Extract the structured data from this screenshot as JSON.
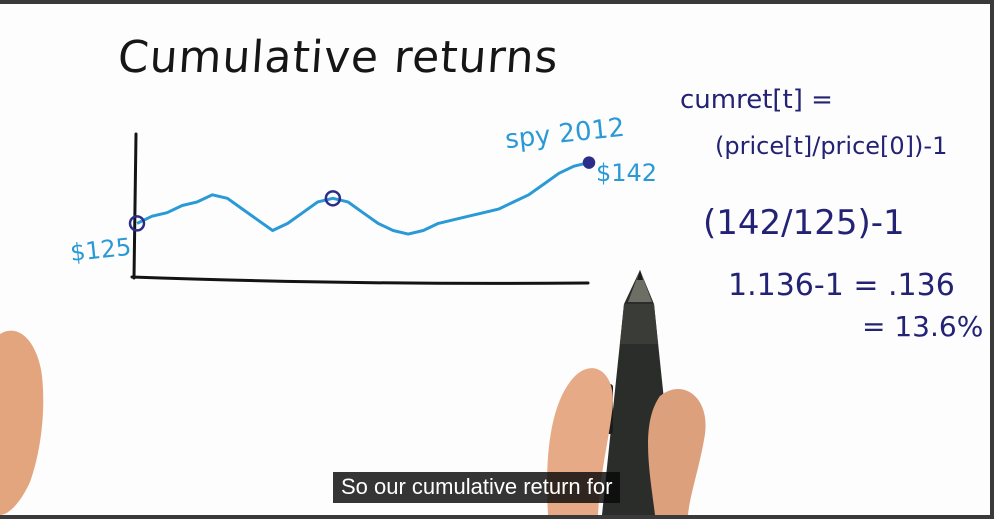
{
  "title": "Cumulative returns",
  "chart": {
    "series_label": "spy 2012",
    "start_label": "$125",
    "end_label": "$142",
    "line_color": "#2a9ad6",
    "axis_color": "#141414",
    "marker_color": "#2c2c8a"
  },
  "formula": {
    "line1": "cumret[t] =",
    "line2": "(price[t]/price[0])-1",
    "line3": "(142/125)-1",
    "line4": "1.136-1 = .136",
    "line5": "= 13.6%"
  },
  "caption": "So our cumulative return for",
  "chart_data": {
    "type": "line",
    "x": [
      0,
      1,
      2,
      3,
      4,
      5,
      6,
      7,
      8,
      9,
      10,
      11,
      12,
      13,
      14,
      15,
      16,
      17,
      18,
      19,
      20,
      21,
      22,
      23,
      24,
      25,
      26,
      27,
      28,
      29,
      30
    ],
    "series": [
      {
        "name": "spy 2012",
        "values": [
          125,
          127,
          128,
          130,
          131,
          133,
          132,
          129,
          126,
          123,
          125,
          128,
          131,
          132,
          131,
          128,
          125,
          123,
          122,
          123,
          125,
          126,
          127,
          128,
          129,
          131,
          133,
          136,
          139,
          141,
          142
        ]
      }
    ],
    "title": "Cumulative returns",
    "annotations": [
      "$125",
      "$142"
    ],
    "ylim": [
      110,
      150
    ]
  }
}
